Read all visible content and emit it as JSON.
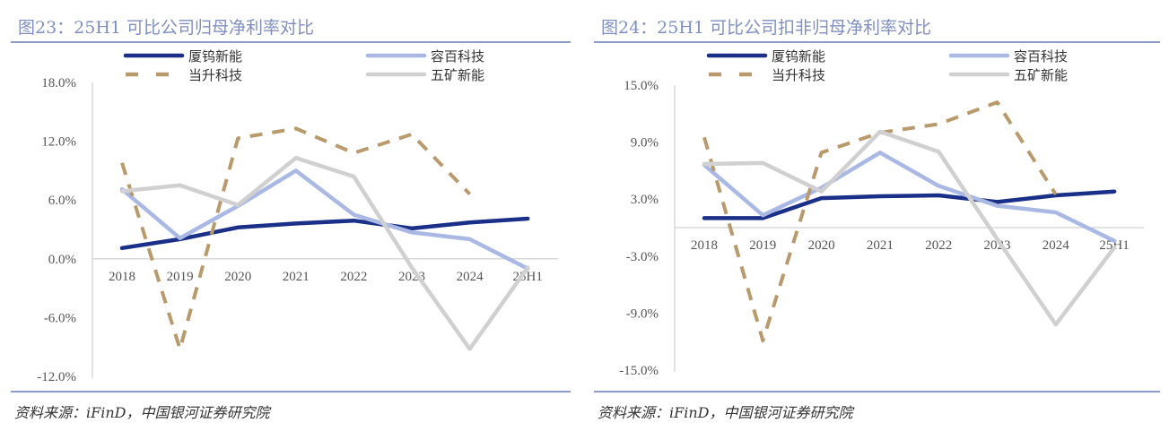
{
  "chart_data": [
    {
      "type": "line",
      "title": "图23：25H1 可比公司归母净利率对比",
      "source": "资料来源：iFinD，中国银河证券研究院",
      "categories": [
        "2018",
        "2019",
        "2020",
        "2021",
        "2022",
        "2023",
        "2024",
        "25H1"
      ],
      "ylim": [
        -12,
        18
      ],
      "yticks": [
        "18.0%",
        "12.0%",
        "6.0%",
        "0.0%",
        "-6.0%",
        "-12.0%"
      ],
      "ytick_values": [
        18,
        12,
        6,
        0,
        -6,
        -12
      ],
      "xlabel": "",
      "ylabel": "",
      "legend_position": "top",
      "series": [
        {
          "name": "厦钨新能",
          "color": "#1a2f87",
          "style": "solid",
          "values": [
            1.1,
            2.0,
            3.2,
            3.6,
            3.9,
            3.1,
            3.7,
            4.1
          ]
        },
        {
          "name": "容百科技",
          "color": "#a9b9e3",
          "style": "solid",
          "values": [
            7.1,
            2.1,
            5.4,
            9.0,
            4.5,
            2.7,
            2.0,
            -1.0
          ]
        },
        {
          "name": "当升科技",
          "color": "#b89a6c",
          "style": "dashed",
          "values": [
            9.8,
            -9.2,
            12.3,
            13.3,
            10.8,
            12.7,
            6.6,
            null
          ]
        },
        {
          "name": "五矿新能",
          "color": "#d0d0d0",
          "style": "solid",
          "values": [
            6.9,
            7.5,
            5.5,
            10.3,
            8.4,
            -0.9,
            -9.2,
            -0.9
          ]
        }
      ]
    },
    {
      "type": "line",
      "title": "图24：25H1 可比公司扣非归母净利率对比",
      "source": "资料来源：iFinD，中国银河证券研究院",
      "categories": [
        "2018",
        "2019",
        "2020",
        "2021",
        "2022",
        "2023",
        "2024",
        "25H1"
      ],
      "ylim": [
        -15,
        15
      ],
      "yticks": [
        "15.0%",
        "9.0%",
        "3.0%",
        "-3.0%",
        "-9.0%",
        "-15.0%"
      ],
      "ytick_values": [
        15,
        9,
        3,
        -3,
        -9,
        -15
      ],
      "xlabel": "",
      "ylabel": "",
      "legend_position": "top",
      "series": [
        {
          "name": "厦钨新能",
          "color": "#1a2f87",
          "style": "solid",
          "values": [
            1.0,
            1.0,
            3.1,
            3.3,
            3.4,
            2.7,
            3.4,
            3.8
          ]
        },
        {
          "name": "容百科技",
          "color": "#a9b9e3",
          "style": "solid",
          "values": [
            6.6,
            1.3,
            4.2,
            7.9,
            4.4,
            2.3,
            1.6,
            -1.4
          ]
        },
        {
          "name": "当升科技",
          "color": "#b89a6c",
          "style": "dashed",
          "values": [
            9.5,
            -11.9,
            7.9,
            10.0,
            10.9,
            13.2,
            3.5,
            null
          ]
        },
        {
          "name": "五矿新能",
          "color": "#d0d0d0",
          "style": "solid",
          "values": [
            6.7,
            6.8,
            3.8,
            10.1,
            8.0,
            -1.2,
            -10.2,
            -2.1
          ]
        }
      ]
    }
  ]
}
